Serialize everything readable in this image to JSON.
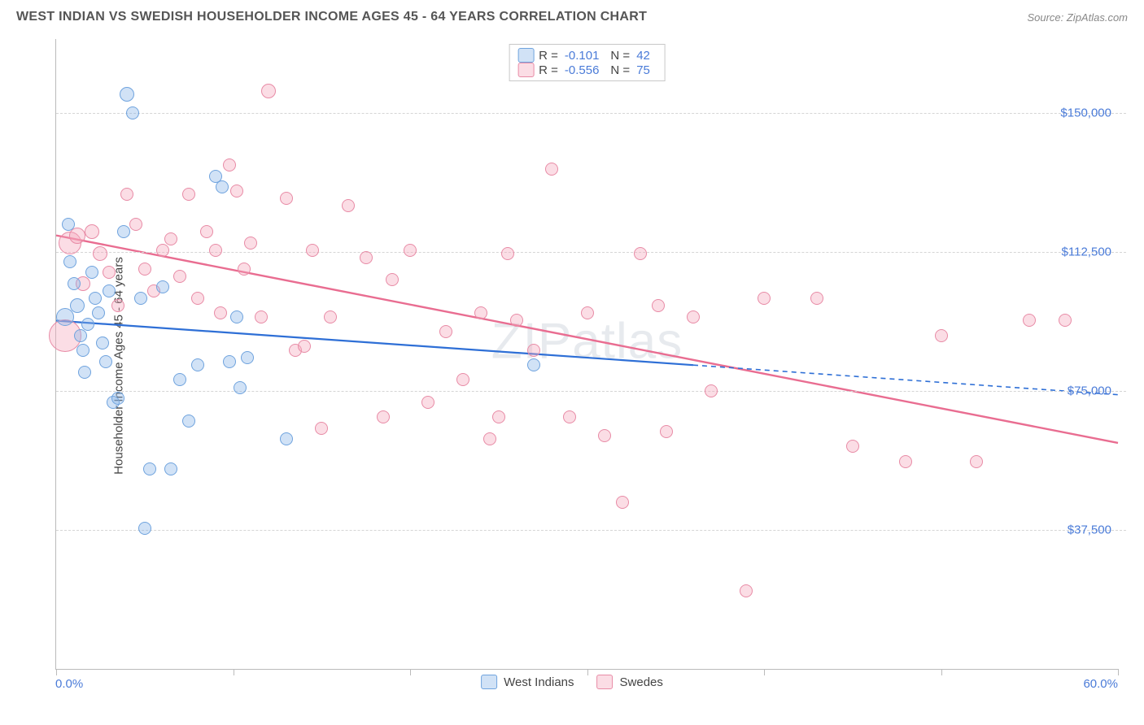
{
  "title": "WEST INDIAN VS SWEDISH HOUSEHOLDER INCOME AGES 45 - 64 YEARS CORRELATION CHART",
  "source": "Source: ZipAtlas.com",
  "watermark": "ZIPatlas",
  "chart": {
    "type": "scatter",
    "ylabel": "Householder Income Ages 45 - 64 years",
    "xlim": [
      0,
      60
    ],
    "ylim": [
      0,
      170000
    ],
    "xticks": [
      0,
      10,
      20,
      30,
      40,
      50,
      60
    ],
    "yticks": [
      37500,
      75000,
      112500,
      150000
    ],
    "ytick_labels": [
      "$37,500",
      "$75,000",
      "$112,500",
      "$150,000"
    ],
    "xlabel_min": "0.0%",
    "xlabel_max": "60.0%",
    "grid_color": "#d5d5d5",
    "axis_color": "#bbbbbb",
    "tick_label_color": "#4a7bd8",
    "background_color": "#ffffff",
    "point_border_width": 1.2,
    "series": [
      {
        "name": "West Indians",
        "fill": "rgba(134,178,232,0.38)",
        "stroke": "#6fa3de",
        "r_value": "-0.101",
        "n_value": "42",
        "trend": {
          "x1": 0,
          "y1": 94000,
          "x2": 36,
          "y2": 82000,
          "color": "#2e6fd6",
          "width": 2.2
        },
        "trend_dash": {
          "x1": 36,
          "y1": 82000,
          "x2": 60,
          "y2": 74000,
          "color": "#2e6fd6",
          "width": 1.6
        },
        "points": [
          {
            "x": 0.5,
            "y": 95000,
            "r": 11
          },
          {
            "x": 0.7,
            "y": 120000,
            "r": 8
          },
          {
            "x": 0.8,
            "y": 110000,
            "r": 8
          },
          {
            "x": 1.0,
            "y": 104000,
            "r": 8
          },
          {
            "x": 1.2,
            "y": 98000,
            "r": 9
          },
          {
            "x": 1.4,
            "y": 90000,
            "r": 8
          },
          {
            "x": 1.5,
            "y": 86000,
            "r": 8
          },
          {
            "x": 1.6,
            "y": 80000,
            "r": 8
          },
          {
            "x": 1.8,
            "y": 93000,
            "r": 8
          },
          {
            "x": 2.0,
            "y": 107000,
            "r": 8
          },
          {
            "x": 2.2,
            "y": 100000,
            "r": 8
          },
          {
            "x": 2.4,
            "y": 96000,
            "r": 8
          },
          {
            "x": 2.6,
            "y": 88000,
            "r": 8
          },
          {
            "x": 2.8,
            "y": 83000,
            "r": 8
          },
          {
            "x": 3.0,
            "y": 102000,
            "r": 8
          },
          {
            "x": 3.2,
            "y": 72000,
            "r": 8
          },
          {
            "x": 3.5,
            "y": 73000,
            "r": 8
          },
          {
            "x": 3.8,
            "y": 118000,
            "r": 8
          },
          {
            "x": 4.0,
            "y": 155000,
            "r": 9
          },
          {
            "x": 4.3,
            "y": 150000,
            "r": 8
          },
          {
            "x": 4.8,
            "y": 100000,
            "r": 8
          },
          {
            "x": 5.0,
            "y": 38000,
            "r": 8
          },
          {
            "x": 5.3,
            "y": 54000,
            "r": 8
          },
          {
            "x": 6.0,
            "y": 103000,
            "r": 8
          },
          {
            "x": 6.5,
            "y": 54000,
            "r": 8
          },
          {
            "x": 7.0,
            "y": 78000,
            "r": 8
          },
          {
            "x": 7.5,
            "y": 67000,
            "r": 8
          },
          {
            "x": 8.0,
            "y": 82000,
            "r": 8
          },
          {
            "x": 9.0,
            "y": 133000,
            "r": 8
          },
          {
            "x": 9.4,
            "y": 130000,
            "r": 8
          },
          {
            "x": 9.8,
            "y": 83000,
            "r": 8
          },
          {
            "x": 10.2,
            "y": 95000,
            "r": 8
          },
          {
            "x": 10.4,
            "y": 76000,
            "r": 8
          },
          {
            "x": 10.8,
            "y": 84000,
            "r": 8
          },
          {
            "x": 13.0,
            "y": 62000,
            "r": 8
          },
          {
            "x": 27.0,
            "y": 82000,
            "r": 8
          }
        ]
      },
      {
        "name": "Swedes",
        "fill": "rgba(244,166,186,0.38)",
        "stroke": "#e88ba6",
        "r_value": "-0.556",
        "n_value": "75",
        "trend": {
          "x1": 0,
          "y1": 117000,
          "x2": 60,
          "y2": 61000,
          "color": "#e96d91",
          "width": 2.4
        },
        "points": [
          {
            "x": 0.5,
            "y": 90000,
            "r": 20
          },
          {
            "x": 0.8,
            "y": 115000,
            "r": 14
          },
          {
            "x": 1.2,
            "y": 117000,
            "r": 10
          },
          {
            "x": 1.5,
            "y": 104000,
            "r": 9
          },
          {
            "x": 2.0,
            "y": 118000,
            "r": 9
          },
          {
            "x": 2.5,
            "y": 112000,
            "r": 9
          },
          {
            "x": 3.0,
            "y": 107000,
            "r": 8
          },
          {
            "x": 3.5,
            "y": 98000,
            "r": 8
          },
          {
            "x": 4.0,
            "y": 128000,
            "r": 8
          },
          {
            "x": 4.5,
            "y": 120000,
            "r": 8
          },
          {
            "x": 5.0,
            "y": 108000,
            "r": 8
          },
          {
            "x": 5.5,
            "y": 102000,
            "r": 8
          },
          {
            "x": 6.0,
            "y": 113000,
            "r": 8
          },
          {
            "x": 6.5,
            "y": 116000,
            "r": 8
          },
          {
            "x": 7.0,
            "y": 106000,
            "r": 8
          },
          {
            "x": 7.5,
            "y": 128000,
            "r": 8
          },
          {
            "x": 8.0,
            "y": 100000,
            "r": 8
          },
          {
            "x": 8.5,
            "y": 118000,
            "r": 8
          },
          {
            "x": 9.0,
            "y": 113000,
            "r": 8
          },
          {
            "x": 9.3,
            "y": 96000,
            "r": 8
          },
          {
            "x": 9.8,
            "y": 136000,
            "r": 8
          },
          {
            "x": 10.2,
            "y": 129000,
            "r": 8
          },
          {
            "x": 10.6,
            "y": 108000,
            "r": 8
          },
          {
            "x": 11.0,
            "y": 115000,
            "r": 8
          },
          {
            "x": 11.6,
            "y": 95000,
            "r": 8
          },
          {
            "x": 12.0,
            "y": 156000,
            "r": 9
          },
          {
            "x": 13.0,
            "y": 127000,
            "r": 8
          },
          {
            "x": 13.5,
            "y": 86000,
            "r": 8
          },
          {
            "x": 14.0,
            "y": 87000,
            "r": 8
          },
          {
            "x": 14.5,
            "y": 113000,
            "r": 8
          },
          {
            "x": 15.0,
            "y": 65000,
            "r": 8
          },
          {
            "x": 15.5,
            "y": 95000,
            "r": 8
          },
          {
            "x": 16.5,
            "y": 125000,
            "r": 8
          },
          {
            "x": 17.5,
            "y": 111000,
            "r": 8
          },
          {
            "x": 18.5,
            "y": 68000,
            "r": 8
          },
          {
            "x": 19.0,
            "y": 105000,
            "r": 8
          },
          {
            "x": 20.0,
            "y": 113000,
            "r": 8
          },
          {
            "x": 21.0,
            "y": 72000,
            "r": 8
          },
          {
            "x": 22.0,
            "y": 91000,
            "r": 8
          },
          {
            "x": 23.0,
            "y": 78000,
            "r": 8
          },
          {
            "x": 24.0,
            "y": 96000,
            "r": 8
          },
          {
            "x": 24.5,
            "y": 62000,
            "r": 8
          },
          {
            "x": 25.0,
            "y": 68000,
            "r": 8
          },
          {
            "x": 25.5,
            "y": 112000,
            "r": 8
          },
          {
            "x": 26.0,
            "y": 94000,
            "r": 8
          },
          {
            "x": 27.0,
            "y": 86000,
            "r": 8
          },
          {
            "x": 28.0,
            "y": 135000,
            "r": 8
          },
          {
            "x": 29.0,
            "y": 68000,
            "r": 8
          },
          {
            "x": 30.0,
            "y": 96000,
            "r": 8
          },
          {
            "x": 31.0,
            "y": 63000,
            "r": 8
          },
          {
            "x": 32.0,
            "y": 45000,
            "r": 8
          },
          {
            "x": 33.0,
            "y": 112000,
            "r": 8
          },
          {
            "x": 34.0,
            "y": 98000,
            "r": 8
          },
          {
            "x": 34.5,
            "y": 64000,
            "r": 8
          },
          {
            "x": 36.0,
            "y": 95000,
            "r": 8
          },
          {
            "x": 37.0,
            "y": 75000,
            "r": 8
          },
          {
            "x": 39.0,
            "y": 21000,
            "r": 8
          },
          {
            "x": 40.0,
            "y": 100000,
            "r": 8
          },
          {
            "x": 43.0,
            "y": 100000,
            "r": 8
          },
          {
            "x": 45.0,
            "y": 60000,
            "r": 8
          },
          {
            "x": 48.0,
            "y": 56000,
            "r": 8
          },
          {
            "x": 50.0,
            "y": 90000,
            "r": 8
          },
          {
            "x": 52.0,
            "y": 56000,
            "r": 8
          },
          {
            "x": 55.0,
            "y": 94000,
            "r": 8
          },
          {
            "x": 57.0,
            "y": 94000,
            "r": 8
          }
        ]
      }
    ]
  },
  "legend_bottom": [
    {
      "label": "West Indians"
    },
    {
      "label": "Swedes"
    }
  ]
}
